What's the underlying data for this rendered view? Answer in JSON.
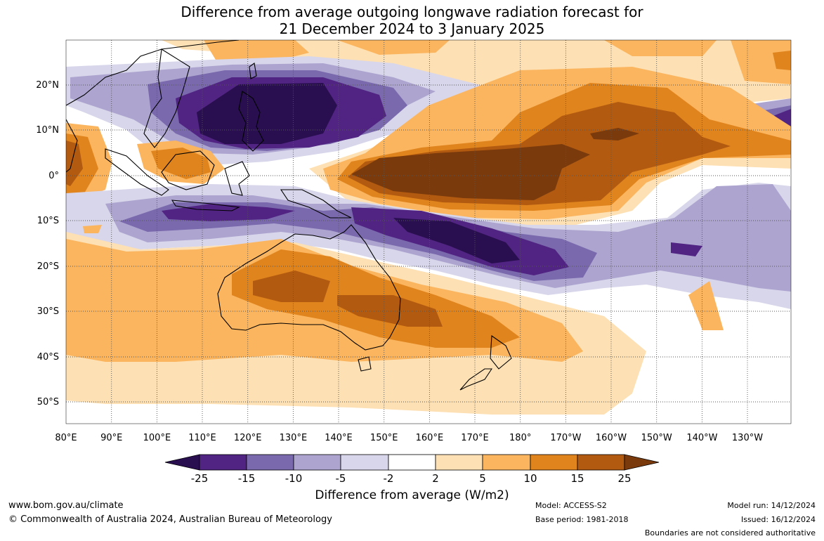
{
  "title": {
    "line1": "Difference from average outgoing longwave radiation forecast for",
    "line2": "21 December 2024 to 3 January 2025"
  },
  "map": {
    "lon_labels": [
      "80°E",
      "90°E",
      "100°E",
      "110°E",
      "120°E",
      "130°E",
      "140°E",
      "150°E",
      "160°E",
      "170°E",
      "180°",
      "170°W",
      "160°W",
      "150°W",
      "140°W",
      "130°W"
    ],
    "lat_labels": [
      "20°N",
      "10°N",
      "0°",
      "10°S",
      "20°S",
      "30°S",
      "40°S",
      "50°S"
    ],
    "extent": {
      "lon_min": 80,
      "lon_max": 243,
      "lat_min": -55,
      "lat_max": 30
    },
    "gridlines": true
  },
  "colorbar": {
    "ticks": [
      "-25",
      "-15",
      "-10",
      "-5",
      "-2",
      "2",
      "5",
      "10",
      "15",
      "25"
    ],
    "colors": [
      "#2a0f50",
      "#512483",
      "#7a6aad",
      "#ada5d0",
      "#d8d6ea",
      "#ffffff",
      "#fde0b3",
      "#fbb55f",
      "#e0841d",
      "#b25a10",
      "#7a3a0c"
    ],
    "title": "Difference from average (W/m2)"
  },
  "footer": {
    "website": "www.bom.gov.au/climate",
    "copyright": "© Commonwealth of Australia 2024, Australian Bureau of Meteorology",
    "model": "Model: ACCESS-S2",
    "base_period": "Base period: 1981-2018",
    "model_run": "Model run: 14/12/2024",
    "issued": "Issued: 16/12/2024",
    "disclaimer": "Boundaries are not considered authoritative"
  }
}
